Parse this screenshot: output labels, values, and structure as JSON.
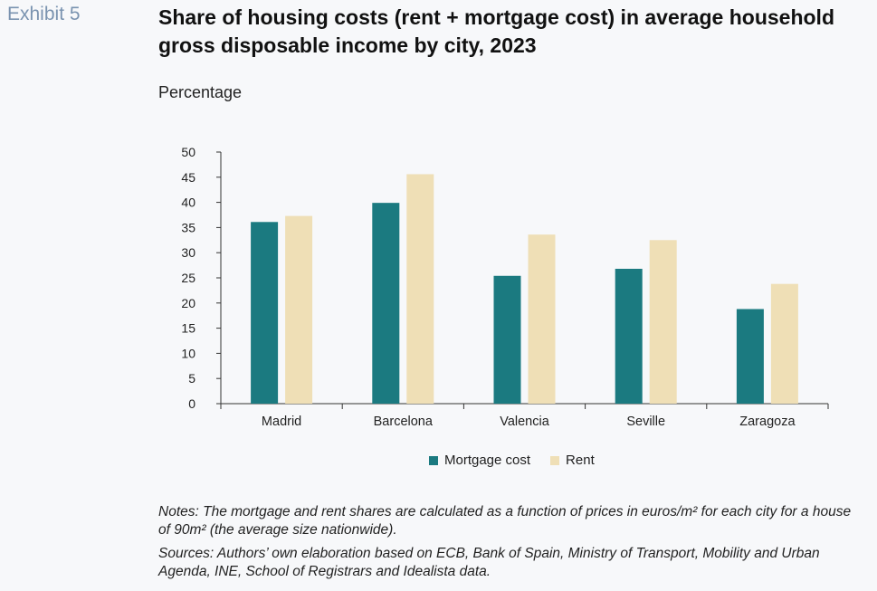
{
  "exhibit_label": "Exhibit 5",
  "title": "Share of housing costs (rent + mortgage cost) in average household gross disposable income by city, 2023",
  "unit_label": "Percentage",
  "notes": "Notes: The mortgage and rent shares are calculated as a function of prices in euros/m² for each city for a house of 90m² (the average size nationwide).",
  "sources": "Sources: Authors’ own elaboration based on ECB, Bank of Spain, Ministry of Transport, Mobility and Urban Agenda, INE, School of Registrars and Idealista data.",
  "chart_data": {
    "type": "bar",
    "categories": [
      "Madrid",
      "Barcelona",
      "Valencia",
      "Seville",
      "Zaragoza"
    ],
    "series": [
      {
        "name": "Mortgage cost",
        "color": "#1b7a80",
        "values": [
          36.1,
          39.9,
          25.4,
          26.8,
          18.8
        ]
      },
      {
        "name": "Rent",
        "color": "#efdfb6",
        "values": [
          37.3,
          45.6,
          33.6,
          32.5,
          23.8
        ]
      }
    ],
    "ylim": [
      0,
      50
    ],
    "yticks": [
      0,
      5,
      10,
      15,
      20,
      25,
      30,
      35,
      40,
      45,
      50
    ],
    "grid": false,
    "legend_position": "bottom-center"
  }
}
